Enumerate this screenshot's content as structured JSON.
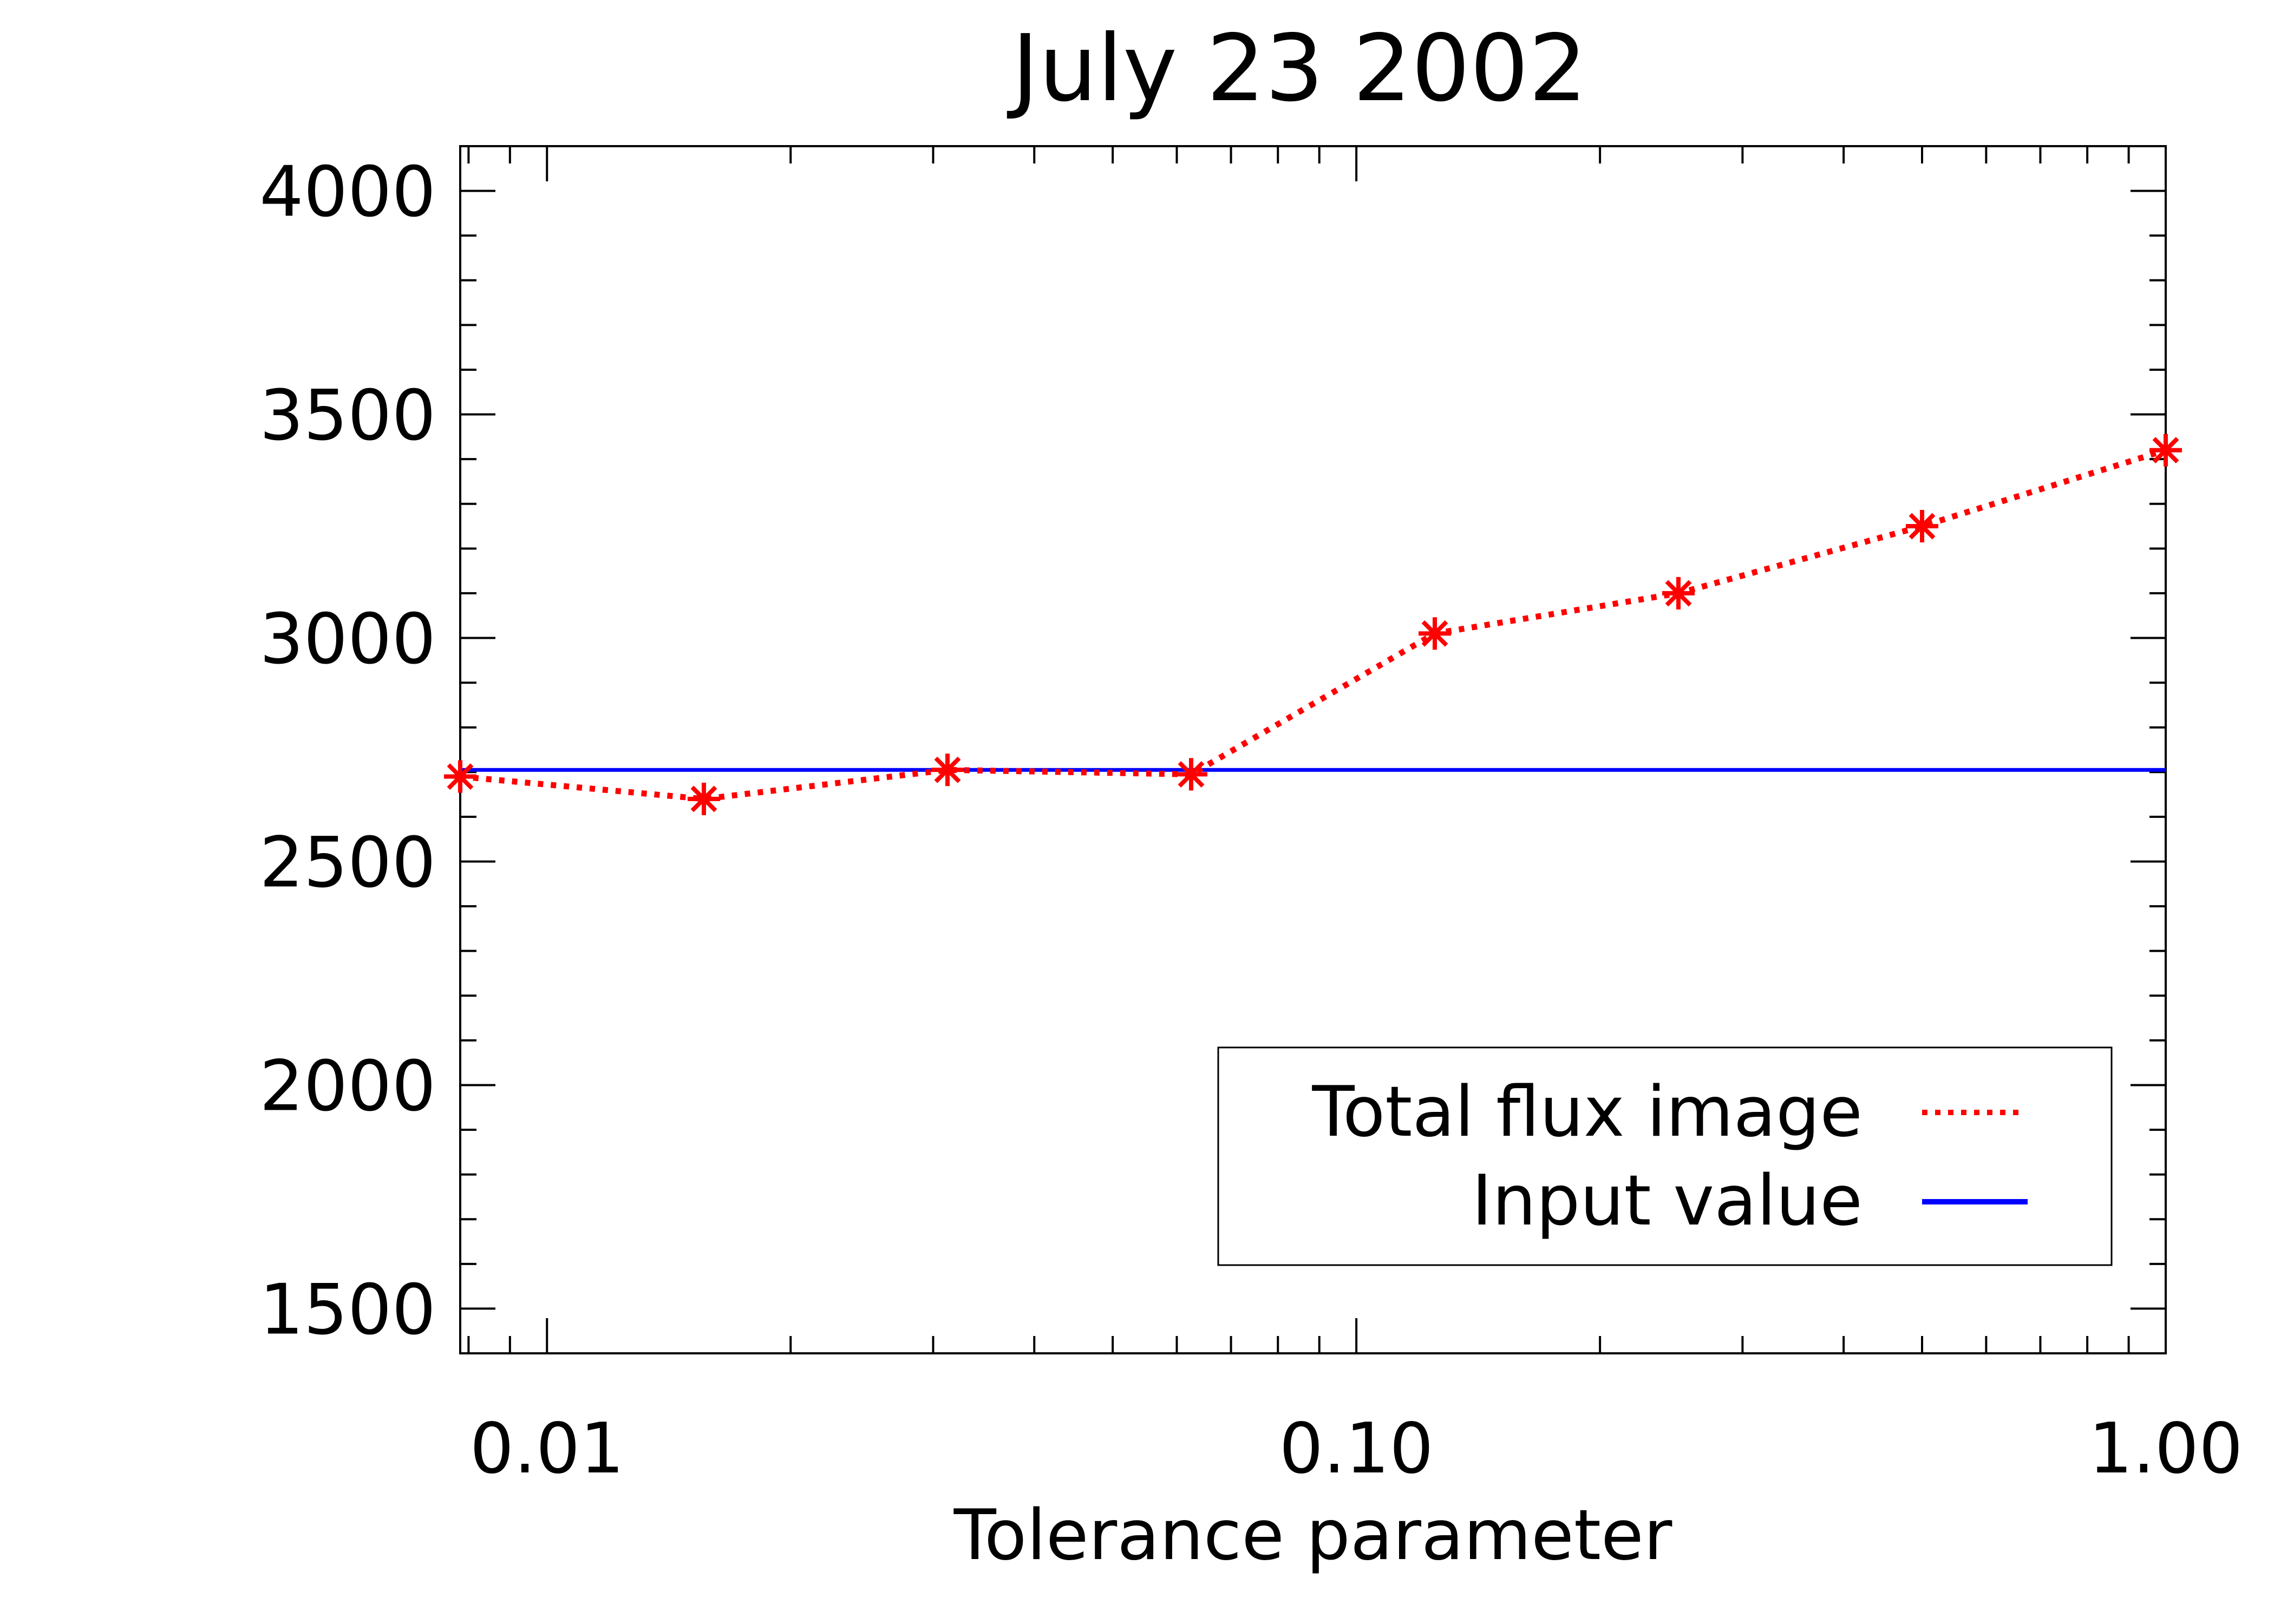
{
  "chart_data": {
    "type": "line",
    "title": "July 23 2002",
    "xlabel": "Tolerance parameter",
    "ylabel": "",
    "x_scale": "log",
    "xlim": [
      0.0078125,
      1.0
    ],
    "ylim": [
      1400,
      4100
    ],
    "x_ticks": [
      {
        "value": 0.01,
        "label": "0.01"
      },
      {
        "value": 0.1,
        "label": "0.10"
      },
      {
        "value": 1.0,
        "label": "1.00"
      }
    ],
    "y_ticks": [
      {
        "value": 1500,
        "label": "1500"
      },
      {
        "value": 2000,
        "label": "2000"
      },
      {
        "value": 2500,
        "label": "2500"
      },
      {
        "value": 3000,
        "label": "3000"
      },
      {
        "value": 3500,
        "label": "3500"
      },
      {
        "value": 4000,
        "label": "4000"
      }
    ],
    "grid": false,
    "legend_position": "bottom-right",
    "series": [
      {
        "name": "Total flux image",
        "style": "dotted",
        "marker": "asterisk",
        "color": "#ff0000",
        "x": [
          0.0078125,
          0.015625,
          0.03125,
          0.0625,
          0.125,
          0.25,
          0.5,
          1.0
        ],
        "y": [
          2690,
          2640,
          2705,
          2695,
          3010,
          3100,
          3250,
          3420
        ]
      },
      {
        "name": "Input value",
        "style": "solid",
        "color": "#0000ff",
        "x": [
          0.0078125,
          1.0
        ],
        "y": [
          2705,
          2705
        ]
      }
    ]
  }
}
